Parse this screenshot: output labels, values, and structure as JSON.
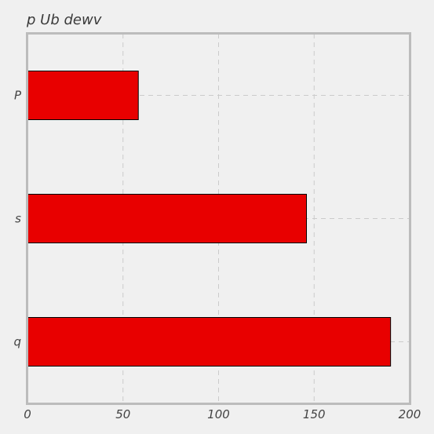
{
  "chart_data": {
    "type": "bar",
    "orientation": "horizontal",
    "title": "p  Ub  dewv",
    "categories": [
      "P",
      "s",
      "q"
    ],
    "values": [
      58,
      146,
      190
    ],
    "xlim": [
      0,
      200
    ],
    "xticks": [
      0,
      50,
      100,
      150,
      200
    ],
    "grid": true,
    "bar_color": "#e80000",
    "bar_edge_color": "#000000",
    "background": "#f0f0f0"
  }
}
